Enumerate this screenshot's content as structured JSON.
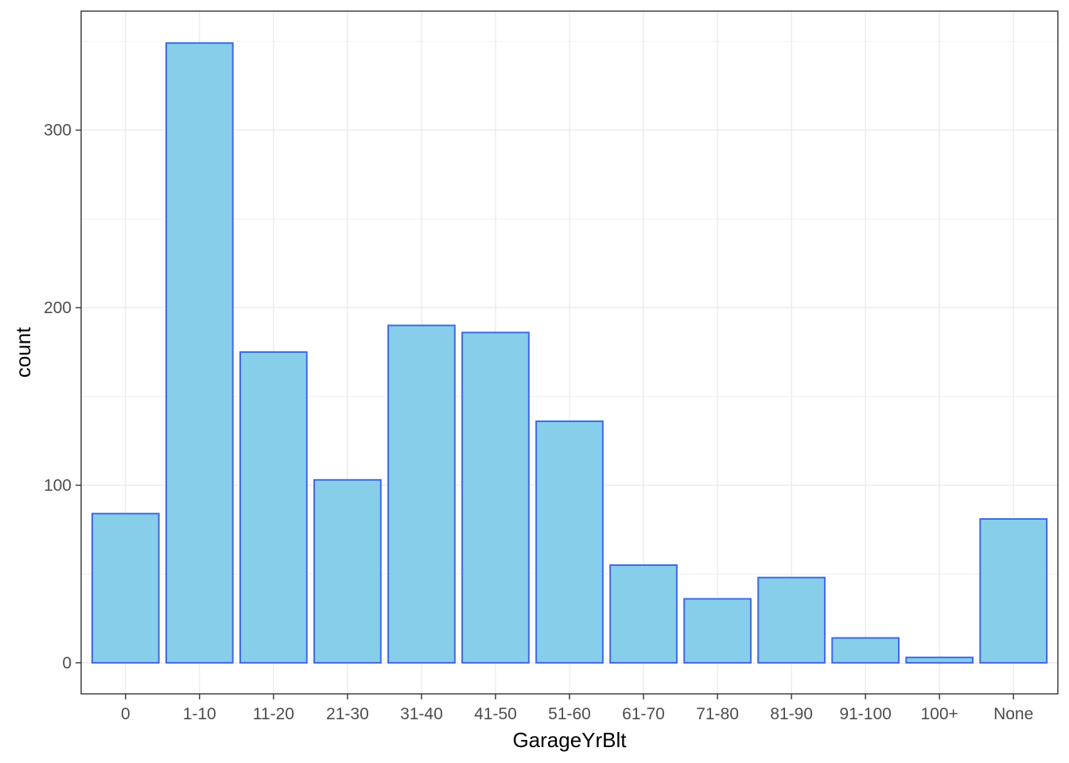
{
  "chart_data": {
    "type": "bar",
    "xlabel": "GarageYrBlt",
    "ylabel": "count",
    "categories": [
      "0",
      "1-10",
      "11-20",
      "21-30",
      "31-40",
      "41-50",
      "51-60",
      "61-70",
      "71-80",
      "81-90",
      "91-100",
      "100+",
      "None"
    ],
    "values": [
      84,
      349,
      175,
      103,
      190,
      186,
      136,
      55,
      36,
      48,
      14,
      3,
      81
    ],
    "yticks": [
      0,
      100,
      200,
      300
    ],
    "ylim": [
      -17.5,
      367
    ],
    "grid": true,
    "colors": {
      "bar_fill": "#87CEEB",
      "bar_stroke": "#4169E1",
      "grid": "#ebebeb",
      "panel_border": "#333333"
    }
  }
}
